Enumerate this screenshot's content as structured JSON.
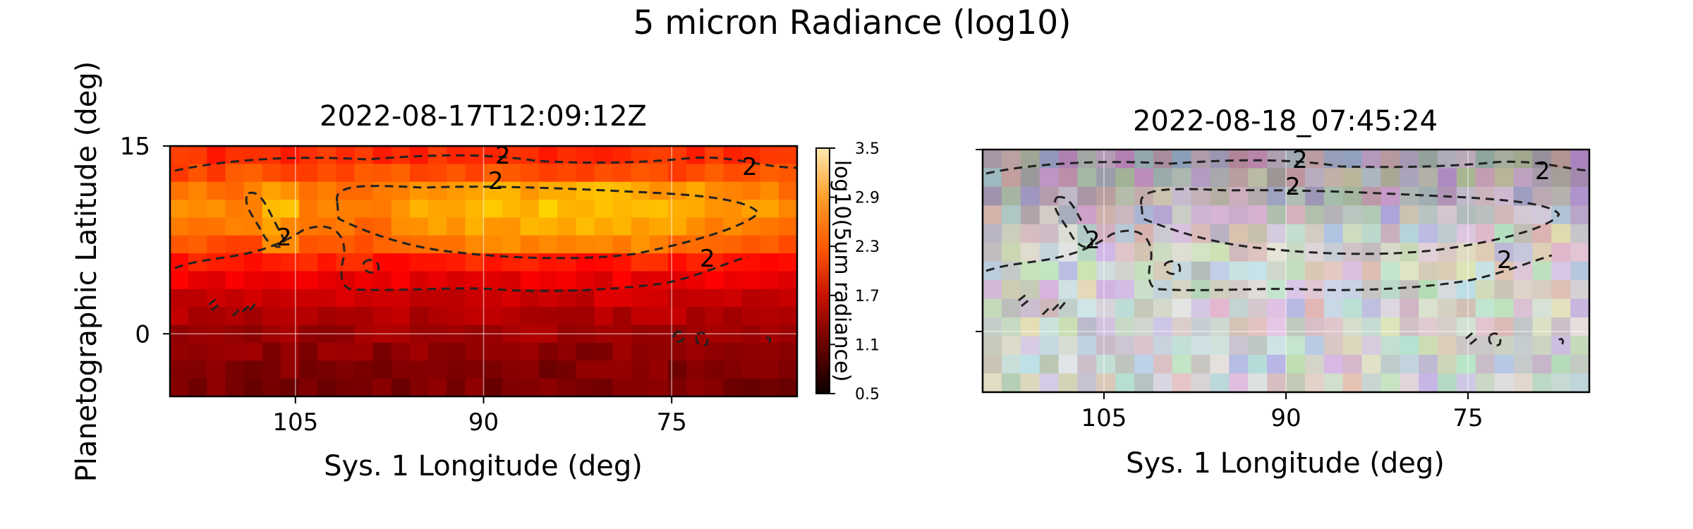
{
  "figure": {
    "suptitle": "5 micron Radiance (log10)"
  },
  "chart_data": [
    {
      "type": "heatmap",
      "title": "2022-08-17T12:09:12Z",
      "xlabel": "Sys. 1 Longitude (deg)",
      "ylabel": "Planetographic Latitude (deg)",
      "xlim": [
        115,
        65
      ],
      "ylim": [
        -5,
        15
      ],
      "xticks": [
        105,
        90,
        75
      ],
      "yticks": [
        15,
        0
      ],
      "grid": true,
      "colormap": "hot",
      "colorbar": {
        "label": "log10(5um radiance)",
        "range": [
          0.5,
          3.5
        ],
        "ticks": [
          "0.5",
          "1.1",
          "1.7",
          "2.3",
          "2.9",
          "3.5"
        ]
      },
      "contour": {
        "level": 2,
        "style": "dashed",
        "color": "#222222"
      },
      "rows_north_to_south": [
        {
          "lat": 14,
          "value": 2.0
        },
        {
          "lat": 12,
          "value": 2.3
        },
        {
          "lat": 10,
          "value": 2.45
        },
        {
          "lat": 8,
          "value": 2.3
        },
        {
          "lat": 6,
          "value": 1.95
        },
        {
          "lat": 4,
          "value": 1.6
        },
        {
          "lat": 2,
          "value": 1.35
        },
        {
          "lat": 0,
          "value": 1.2
        },
        {
          "lat": -2,
          "value": 1.05
        },
        {
          "lat": -4,
          "value": 1.0
        }
      ]
    },
    {
      "type": "heatmap",
      "title": "2022-08-18_07:45:24",
      "xlabel": "Sys. 1 Longitude (deg)",
      "xlim": [
        115,
        65
      ],
      "ylim": [
        -5,
        15
      ],
      "xticks": [
        105,
        90,
        75
      ],
      "grid": true,
      "colormap": "true-color RGB image",
      "contour": {
        "level": 2,
        "style": "dashed",
        "color": "#222222"
      }
    }
  ]
}
